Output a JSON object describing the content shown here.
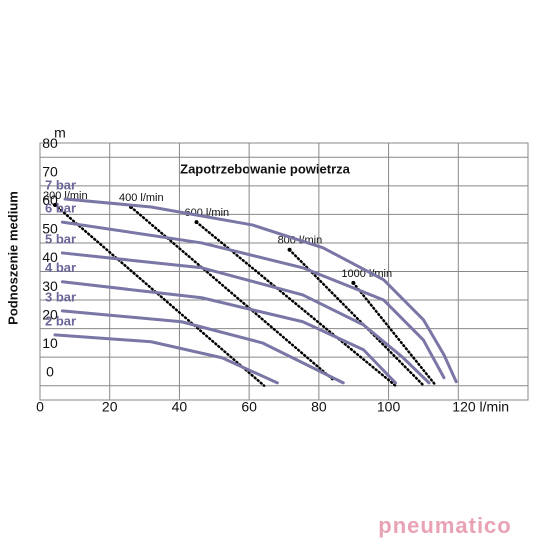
{
  "chart_data": {
    "type": "line",
    "title": "Zapotrzebowanie powietrza",
    "y_label": "Podnoszenie medium",
    "y_unit": "m",
    "xlim": [
      0,
      140
    ],
    "ylim": [
      -5,
      85
    ],
    "xticks": [
      0,
      20,
      40,
      60,
      80,
      100,
      {
        "value": 120,
        "label": "120 l/min"
      }
    ],
    "yticks": [
      0,
      10,
      20,
      30,
      40,
      50,
      60,
      70,
      80
    ],
    "grid": true,
    "color": "#7a76a6",
    "label_color": "#6a6698",
    "air_color": "#000000",
    "series": [
      {
        "name": "7 bar",
        "x": [
          7.2,
          31.9,
          60.9,
          81.2,
          98.6,
          110,
          115.9,
          119.4
        ],
        "values": [
          65.4,
          62.6,
          56.3,
          48.3,
          37.1,
          23.1,
          10.8,
          1.4
        ]
      },
      {
        "name": "6 bar",
        "x": [
          6.4,
          46.4,
          75.4,
          98.6,
          110,
          115.9
        ],
        "values": [
          57.3,
          50,
          41.3,
          30,
          16,
          2.8
        ]
      },
      {
        "name": "5 bar",
        "x": [
          6.4,
          46.4,
          75.4,
          92.8,
          104,
          111.6
        ],
        "values": [
          46.5,
          41.3,
          31.8,
          21.3,
          10,
          1
        ]
      },
      {
        "name": "4 bar",
        "x": [
          6.4,
          46.4,
          75.4,
          92.8,
          102
        ],
        "values": [
          36.4,
          30.8,
          22.4,
          12.6,
          1
        ]
      },
      {
        "name": "3 bar",
        "x": [
          6.4,
          40.6,
          63.8,
          87
        ],
        "values": [
          26.2,
          22.4,
          15,
          1
        ]
      },
      {
        "name": "2 bar",
        "x": [
          4.3,
          31.9,
          52.2,
          68.1
        ],
        "values": [
          17.8,
          15.4,
          9.8,
          1
        ]
      }
    ],
    "air_lines": [
      {
        "name": "200 l/min",
        "x": [
          4.3,
          64.3
        ],
        "values": [
          63.3,
          0
        ]
      },
      {
        "name": "400 l/min",
        "x": [
          26.1,
          84.1
        ],
        "values": [
          62.6,
          2.1
        ]
      },
      {
        "name": "600 l/min",
        "x": [
          44.9,
          102
        ],
        "values": [
          57.3,
          0
        ]
      },
      {
        "name": "800 l/min",
        "x": [
          71.6,
          110.1
        ],
        "values": [
          47.6,
          0
        ]
      },
      {
        "name": "1000 l/min",
        "x": [
          89.9,
          113.6
        ],
        "values": [
          36,
          0
        ]
      }
    ]
  },
  "logo": "pneumatico"
}
